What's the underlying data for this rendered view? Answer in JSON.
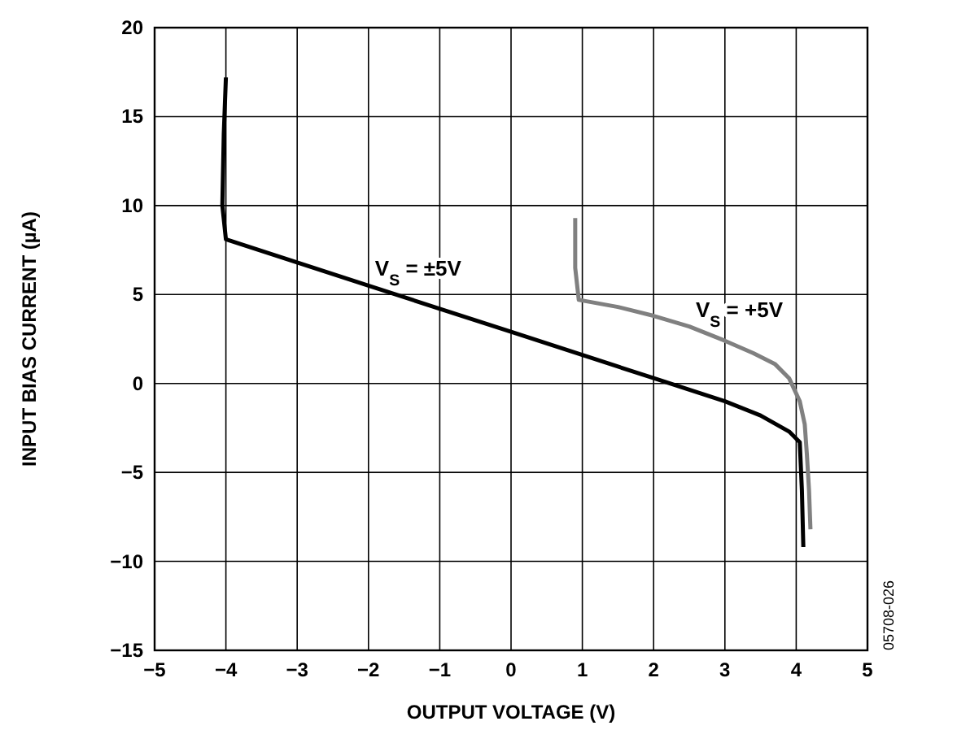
{
  "chart_data": {
    "type": "line",
    "xlabel": "OUTPUT VOLTAGE (V)",
    "ylabel": "INPUT BIAS CURRENT (µA)",
    "xlim": [
      -5,
      5
    ],
    "ylim": [
      -15,
      20
    ],
    "xticks": [
      {
        "value": -5,
        "label": "−5"
      },
      {
        "value": -4,
        "label": "−4"
      },
      {
        "value": -3,
        "label": "−3"
      },
      {
        "value": -2,
        "label": "−2"
      },
      {
        "value": -1,
        "label": "−1"
      },
      0,
      1,
      2,
      3,
      4,
      5
    ],
    "yticks": [
      {
        "value": -15,
        "label": "−15"
      },
      {
        "value": -10,
        "label": "−10"
      },
      {
        "value": -5,
        "label": "−5"
      },
      0,
      5,
      10,
      15,
      20
    ],
    "grid": true,
    "marker": "none",
    "line_style": "solid",
    "series": [
      {
        "name": "V$_{S}$ = ±5V",
        "color": "#000000",
        "x": [
          -4,
          -4.03,
          -4.05,
          -4,
          -3,
          -2,
          -1,
          0,
          1,
          2,
          3,
          3.5,
          3.9,
          4.05,
          4.08,
          4.1
        ],
        "values": [
          17.2,
          14,
          10,
          8.1,
          6.8,
          5.5,
          4.2,
          2.9,
          1.6,
          0.3,
          -1,
          -1.8,
          -2.7,
          -3.3,
          -6,
          -9.2
        ]
      },
      {
        "name": "V$_{S}$ = +5V",
        "color": "#808080",
        "x": [
          0.9,
          0.9,
          0.95,
          1.5,
          2,
          2.5,
          3,
          3.4,
          3.7,
          3.9,
          4.05,
          4.12,
          4.15,
          4.18,
          4.2
        ],
        "values": [
          9.3,
          6.5,
          4.7,
          4.3,
          3.8,
          3.2,
          2.4,
          1.7,
          1.1,
          0.3,
          -1,
          -2.3,
          -4,
          -6,
          -8.2
        ]
      }
    ],
    "annotations": [
      "05708-026"
    ]
  }
}
